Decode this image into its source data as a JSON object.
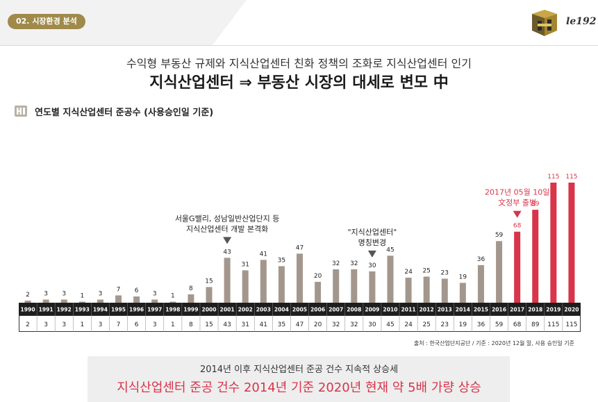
{
  "header": {
    "badge": "02. 시장환경 분석",
    "logo_text": "le192",
    "brand_color": "#a08a4a"
  },
  "intro": {
    "subtitle": "수익형 부동산 규제와 지식산업센터 친화 정책의 조화로 지식산업센터 인기",
    "headline": "지식산업센터 ⇒ 부동산 시장의 대세로 변모 中"
  },
  "section": {
    "title": "연도별 지식산업센터 준공수 (사용승인일 기준)",
    "icon": "hb-logo-icon"
  },
  "chart_data": {
    "type": "bar",
    "categories": [
      "1990",
      "1991",
      "1992",
      "1993",
      "1994",
      "1995",
      "1996",
      "1997",
      "1998",
      "1999",
      "2000",
      "2001",
      "2002",
      "2003",
      "2004",
      "2005",
      "2006",
      "2007",
      "2008",
      "2009",
      "2010",
      "2011",
      "2012",
      "2013",
      "2014",
      "2015",
      "2016",
      "2017",
      "2018",
      "2019",
      "2020"
    ],
    "values": [
      2,
      3,
      3,
      1,
      3,
      7,
      6,
      3,
      1,
      8,
      15,
      43,
      31,
      41,
      35,
      47,
      20,
      32,
      32,
      30,
      45,
      24,
      25,
      23,
      19,
      36,
      59,
      68,
      89,
      115,
      115
    ],
    "colors": {
      "normal": "#a3978d",
      "highlight": "#d8344a",
      "axis_band": "#1e1e1e"
    },
    "highlight_from": "2017",
    "ylim": [
      0,
      115
    ],
    "annotations": [
      {
        "category": "2001",
        "lines": [
          "서울G밸리, 성남일반산업단지 등",
          "지식산업센터 개발 본격화"
        ],
        "color": "#222222"
      },
      {
        "category": "2009",
        "lines": [
          "\"지식산업센터\"",
          "명칭변경"
        ],
        "color": "#222222"
      },
      {
        "category": "2017",
        "lines": [
          "2017년 05월 10일",
          "文정부 출범"
        ],
        "color": "#d8344a"
      }
    ]
  },
  "source": "출처 : 한국산업단지공단 / 기준 : 2020년 12월 말, 사용 승인일 기준",
  "summary": {
    "line1": "2014년 이후 지식산업센터 준공 건수 지속적 상승세",
    "line2": "지식산업센터 준공 건수 2014년 기준 2020년 현재 약 5배 가량 상승"
  }
}
